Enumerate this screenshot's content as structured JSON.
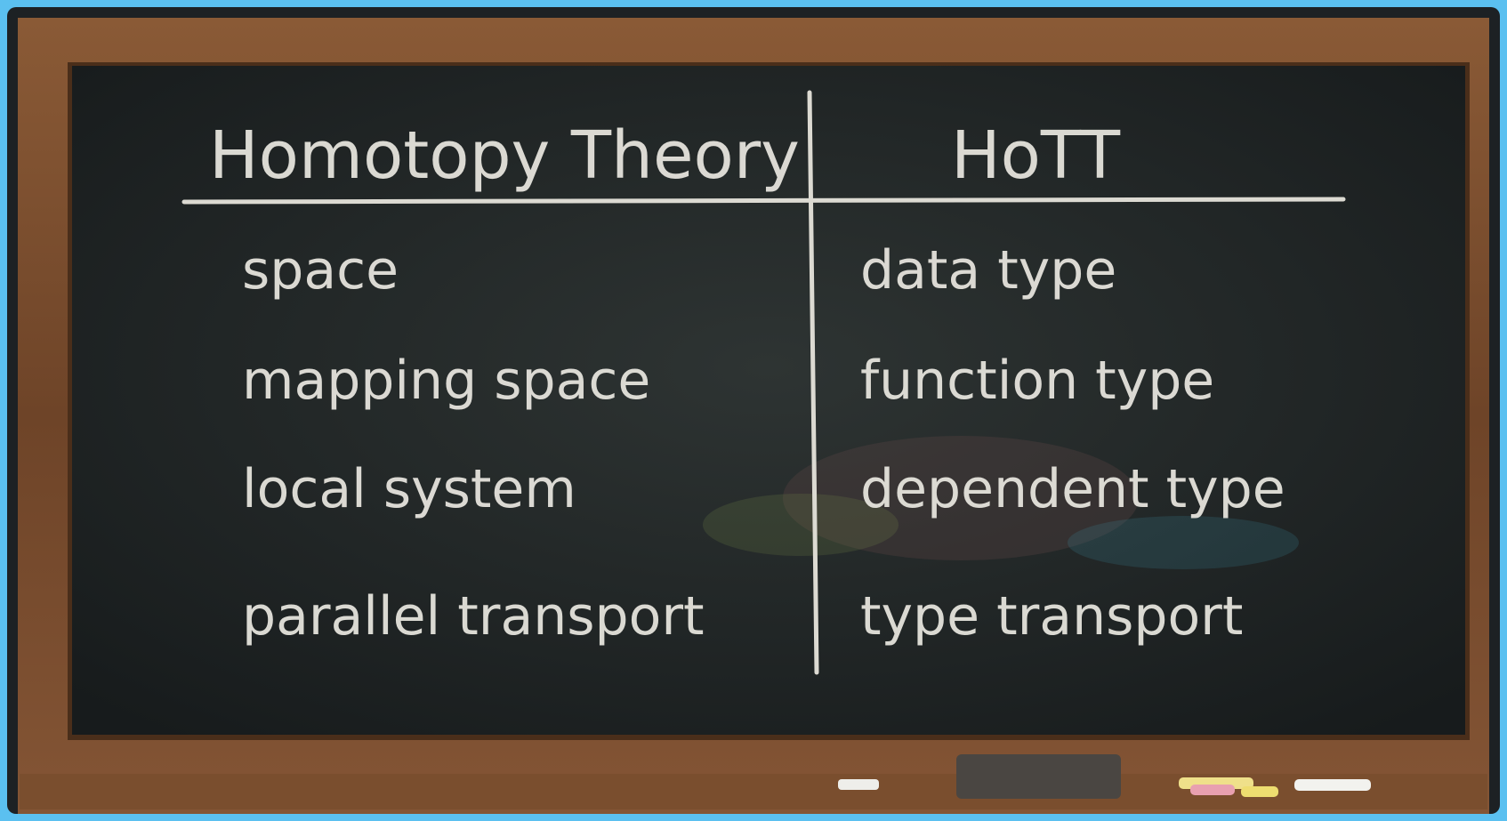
{
  "table": {
    "header": [
      "Homotopy Theory",
      "HoTT"
    ],
    "rows": [
      [
        "space",
        "data type"
      ],
      [
        "mapping space",
        "function type"
      ],
      [
        "local system",
        "dependent type"
      ],
      [
        "parallel transport",
        "type transport"
      ]
    ]
  }
}
